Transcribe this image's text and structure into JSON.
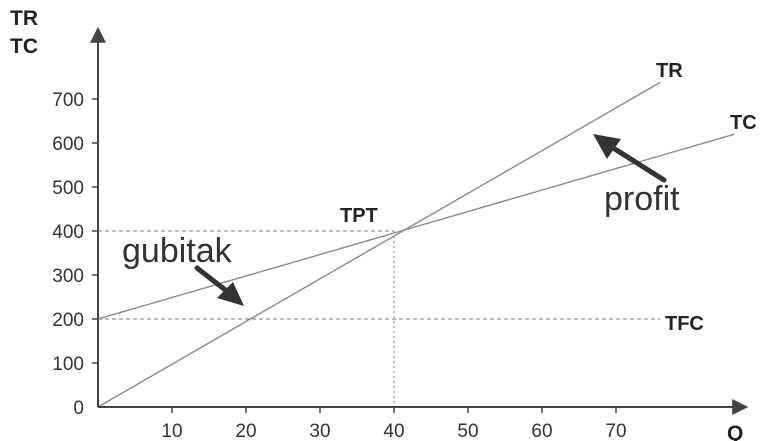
{
  "chart_data": {
    "type": "line",
    "ylabel_lines": [
      "TR",
      "TC"
    ],
    "xlabel": "Q",
    "x_ticks": [
      10,
      20,
      30,
      40,
      50,
      60,
      70
    ],
    "y_ticks": [
      0,
      100,
      200,
      300,
      400,
      500,
      600,
      700
    ],
    "xlim": [
      0,
      80
    ],
    "ylim": [
      0,
      780
    ],
    "series": [
      {
        "name": "TR",
        "x": [
          0,
          76
        ],
        "y": [
          0,
          738
        ]
      },
      {
        "name": "TC",
        "x": [
          0,
          86
        ],
        "y": [
          200,
          620
        ]
      },
      {
        "name": "TFC",
        "x": [
          0,
          76
        ],
        "y": [
          200,
          200
        ]
      }
    ],
    "annotations": {
      "break_even_label": "TPT",
      "break_even_point": {
        "x": 40,
        "y": 400
      },
      "loss_label": "gubitak",
      "profit_label": "profit"
    },
    "colors": {
      "lines": "#8a8a8a",
      "axes": "#444444",
      "arrows": "#333333"
    }
  }
}
